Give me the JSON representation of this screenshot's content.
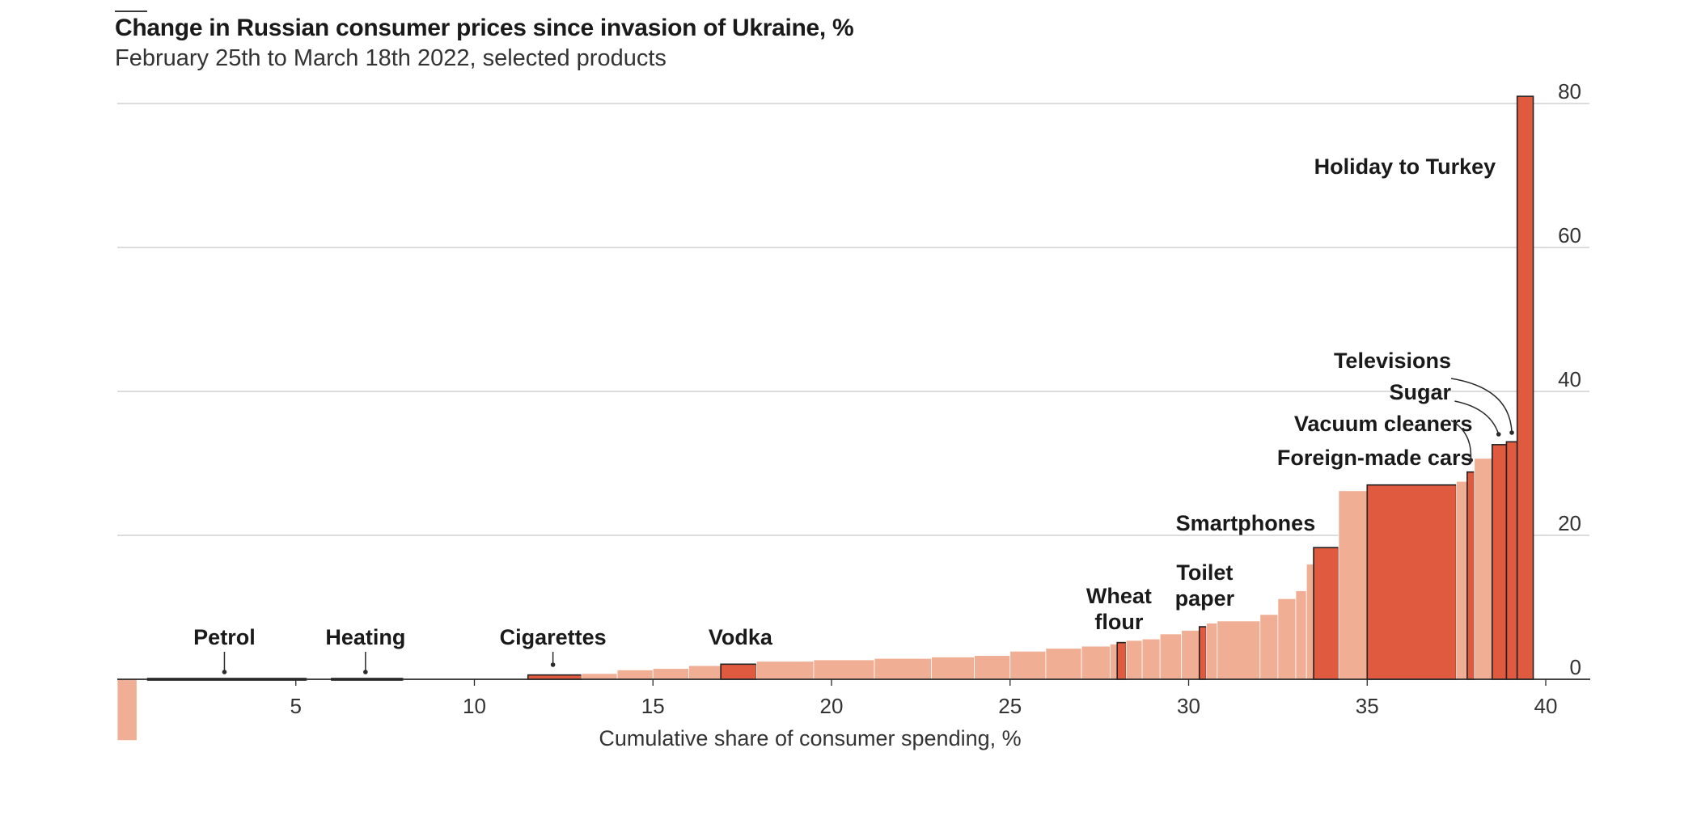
{
  "chart_data": {
    "type": "bar",
    "variant": "variable-width",
    "title": "Change in Russian consumer prices since invasion of Ukraine, %",
    "subtitle": "February 25th to March 18th 2022, selected products",
    "xlabel": "Cumulative share of consumer spending, %",
    "ylabel": "",
    "xlim": [
      0,
      40.8
    ],
    "ylim": [
      -8.5,
      81
    ],
    "x_ticks": [
      "5",
      "10",
      "15",
      "20",
      "25",
      "30",
      "35",
      "40"
    ],
    "y_ticks": [
      "0",
      "20",
      "40",
      "60",
      "80"
    ],
    "grid": true,
    "colors": {
      "highlight": "#e05a40",
      "other": "#f0ae94",
      "outline": "#222222",
      "gridline": "#c8c8c8",
      "axis": "#2a2a2a",
      "text": "#1a1a1a"
    },
    "bars": [
      {
        "x0": 0.0,
        "x1": 0.55,
        "value": -8.5
      },
      {
        "x0": 0.85,
        "x1": 5.3,
        "value": -0.1,
        "highlight": true,
        "label": "Petrol"
      },
      {
        "x0": 5.3,
        "x1": 6.0,
        "value": 0.1
      },
      {
        "x0": 6.0,
        "x1": 8.0,
        "value": 0.1,
        "highlight": true,
        "label": "Heating"
      },
      {
        "x0": 8.0,
        "x1": 11.5,
        "value": 0.05
      },
      {
        "x0": 11.5,
        "x1": 13.0,
        "value": 0.6,
        "highlight": true,
        "label": "Cigarettes"
      },
      {
        "x0": 13.0,
        "x1": 14.0,
        "value": 0.8
      },
      {
        "x0": 14.0,
        "x1": 15.0,
        "value": 1.3
      },
      {
        "x0": 15.0,
        "x1": 16.0,
        "value": 1.5
      },
      {
        "x0": 16.0,
        "x1": 16.9,
        "value": 1.9
      },
      {
        "x0": 16.9,
        "x1": 17.9,
        "value": 2.1,
        "highlight": true,
        "label": "Vodka"
      },
      {
        "x0": 17.9,
        "x1": 19.5,
        "value": 2.5
      },
      {
        "x0": 19.5,
        "x1": 21.2,
        "value": 2.7
      },
      {
        "x0": 21.2,
        "x1": 22.8,
        "value": 2.9
      },
      {
        "x0": 22.8,
        "x1": 24.0,
        "value": 3.1
      },
      {
        "x0": 24.0,
        "x1": 25.0,
        "value": 3.3
      },
      {
        "x0": 25.0,
        "x1": 26.0,
        "value": 3.9
      },
      {
        "x0": 26.0,
        "x1": 27.0,
        "value": 4.3
      },
      {
        "x0": 27.0,
        "x1": 27.8,
        "value": 4.6
      },
      {
        "x0": 27.8,
        "x1": 28.0,
        "value": 4.9
      },
      {
        "x0": 28.0,
        "x1": 28.25,
        "value": 5.1,
        "highlight": true,
        "label": "Wheat\nflour"
      },
      {
        "x0": 28.25,
        "x1": 28.7,
        "value": 5.4
      },
      {
        "x0": 28.7,
        "x1": 29.2,
        "value": 5.6
      },
      {
        "x0": 29.2,
        "x1": 29.8,
        "value": 6.3
      },
      {
        "x0": 29.8,
        "x1": 30.3,
        "value": 6.8
      },
      {
        "x0": 30.3,
        "x1": 30.5,
        "value": 7.3,
        "highlight": true,
        "label": "Toilet\npaper"
      },
      {
        "x0": 30.5,
        "x1": 30.8,
        "value": 7.8
      },
      {
        "x0": 30.8,
        "x1": 32.0,
        "value": 8.1
      },
      {
        "x0": 32.0,
        "x1": 32.5,
        "value": 9.0
      },
      {
        "x0": 32.5,
        "x1": 33.0,
        "value": 11.2
      },
      {
        "x0": 33.0,
        "x1": 33.3,
        "value": 12.3
      },
      {
        "x0": 33.3,
        "x1": 33.5,
        "value": 16.0
      },
      {
        "x0": 33.5,
        "x1": 34.2,
        "value": 18.3,
        "highlight": true,
        "label": "Smartphones"
      },
      {
        "x0": 34.2,
        "x1": 35.0,
        "value": 26.2
      },
      {
        "x0": 35.0,
        "x1": 37.5,
        "value": 27.0,
        "highlight": true,
        "label": "Foreign-made cars"
      },
      {
        "x0": 37.5,
        "x1": 37.8,
        "value": 27.5
      },
      {
        "x0": 37.8,
        "x1": 38.0,
        "value": 28.8,
        "highlight": true,
        "label": "Vacuum cleaners"
      },
      {
        "x0": 38.0,
        "x1": 38.5,
        "value": 30.7
      },
      {
        "x0": 38.5,
        "x1": 38.9,
        "value": 32.6,
        "highlight": true,
        "label": "Sugar"
      },
      {
        "x0": 38.9,
        "x1": 39.2,
        "value": 33.0,
        "highlight": true,
        "label": "Televisions"
      },
      {
        "x0": 39.2,
        "x1": 39.65,
        "value": 81.0,
        "highlight": true,
        "label": "Holiday to Turkey"
      }
    ]
  }
}
